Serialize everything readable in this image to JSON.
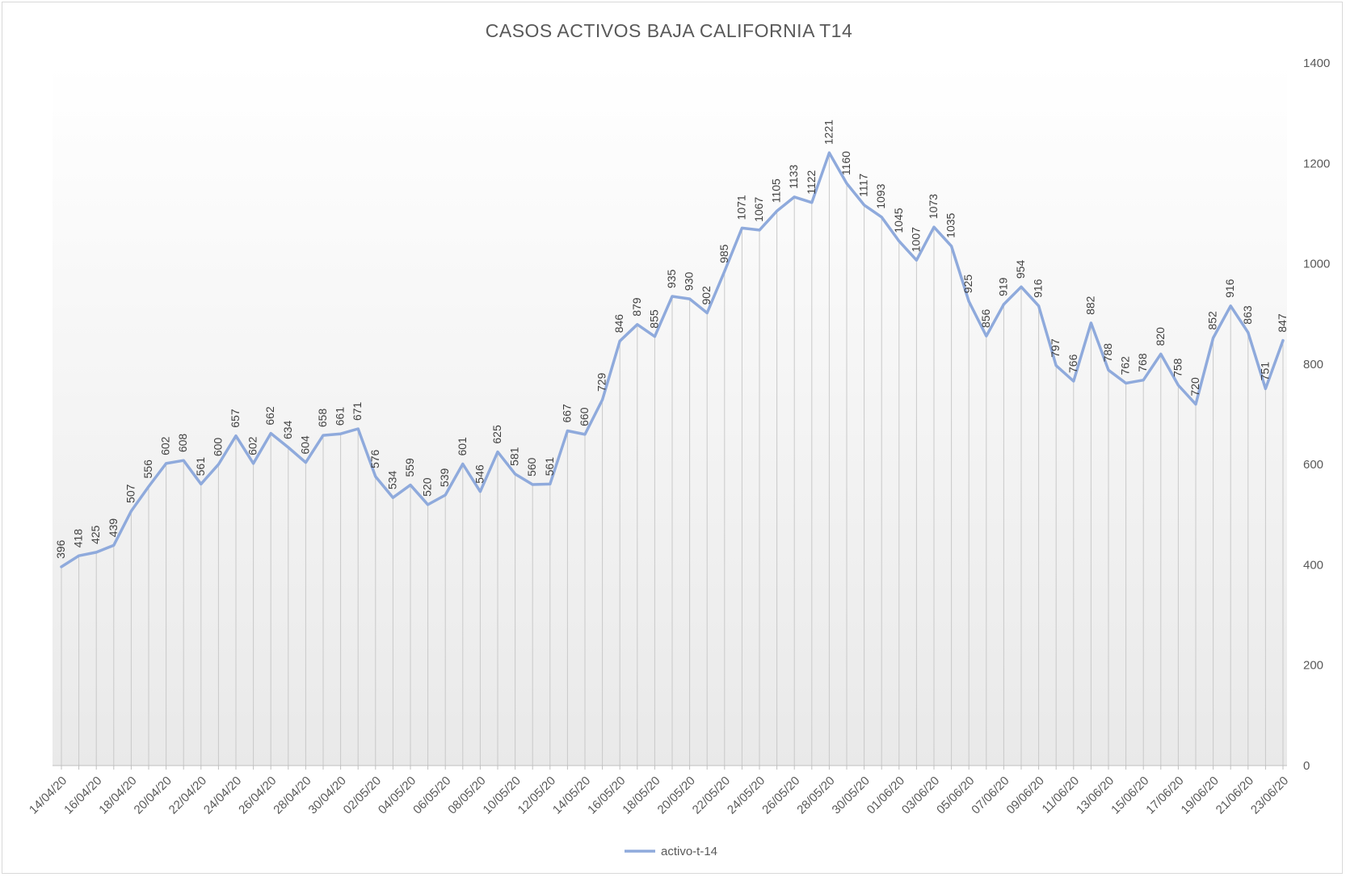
{
  "chart_data": {
    "type": "line",
    "title": "CASOS ACTIVOS BAJA CALIFORNIA  T14",
    "xlabel": "",
    "ylabel": "",
    "ylim": [
      0,
      1400
    ],
    "y_ticks": [
      0,
      200,
      400,
      600,
      800,
      1000,
      1200,
      1400
    ],
    "y_axis_side": "right",
    "grid": "vertical drop lines at each point",
    "legend_position": "bottom",
    "x": [
      "14/04/20",
      "15/04/20",
      "16/04/20",
      "17/04/20",
      "18/04/20",
      "19/04/20",
      "20/04/20",
      "21/04/20",
      "22/04/20",
      "23/04/20",
      "24/04/20",
      "25/04/20",
      "26/04/20",
      "27/04/20",
      "28/04/20",
      "29/04/20",
      "30/04/20",
      "01/05/20",
      "02/05/20",
      "03/05/20",
      "04/05/20",
      "05/05/20",
      "06/05/20",
      "07/05/20",
      "08/05/20",
      "09/05/20",
      "10/05/20",
      "11/05/20",
      "12/05/20",
      "13/05/20",
      "14/05/20",
      "15/05/20",
      "16/05/20",
      "17/05/20",
      "18/05/20",
      "19/05/20",
      "20/05/20",
      "21/05/20",
      "22/05/20",
      "23/05/20",
      "24/05/20",
      "25/05/20",
      "26/05/20",
      "27/05/20",
      "28/05/20",
      "29/05/20",
      "30/05/20",
      "31/05/20",
      "01/06/20",
      "02/06/20",
      "03/06/20",
      "04/06/20",
      "05/06/20",
      "06/06/20",
      "07/06/20",
      "08/06/20",
      "09/06/20",
      "10/06/20",
      "11/06/20",
      "12/06/20",
      "13/06/20",
      "14/06/20",
      "15/06/20",
      "16/06/20",
      "17/06/20",
      "18/06/20",
      "19/06/20",
      "20/06/20",
      "21/06/20",
      "22/06/20",
      "23/06/20"
    ],
    "x_tick_labels": [
      "14/04/20",
      "16/04/20",
      "18/04/20",
      "20/04/20",
      "22/04/20",
      "24/04/20",
      "26/04/20",
      "28/04/20",
      "30/04/20",
      "02/05/20",
      "04/05/20",
      "06/05/20",
      "08/05/20",
      "10/05/20",
      "12/05/20",
      "14/05/20",
      "16/05/20",
      "18/05/20",
      "20/05/20",
      "22/05/20",
      "24/05/20",
      "26/05/20",
      "28/05/20",
      "30/05/20",
      "01/06/20",
      "03/06/20",
      "05/06/20",
      "07/06/20",
      "09/06/20",
      "11/06/20",
      "13/06/20",
      "15/06/20",
      "17/06/20",
      "19/06/20",
      "21/06/20",
      "23/06/20"
    ],
    "series": [
      {
        "name": "activo-t-14",
        "color": "#8faadc",
        "values": [
          396,
          418,
          425,
          439,
          507,
          556,
          602,
          608,
          561,
          600,
          657,
          602,
          662,
          634,
          604,
          658,
          661,
          671,
          576,
          534,
          559,
          520,
          539,
          601,
          546,
          625,
          581,
          560,
          561,
          667,
          660,
          729,
          846,
          879,
          855,
          935,
          930,
          902,
          985,
          1071,
          1067,
          1105,
          1133,
          1122,
          1221,
          1160,
          1117,
          1093,
          1045,
          1007,
          1073,
          1035,
          925,
          856,
          919,
          954,
          916,
          797,
          766,
          882,
          788,
          762,
          768,
          820,
          758,
          720,
          852,
          916,
          863,
          751,
          847
        ]
      }
    ]
  }
}
